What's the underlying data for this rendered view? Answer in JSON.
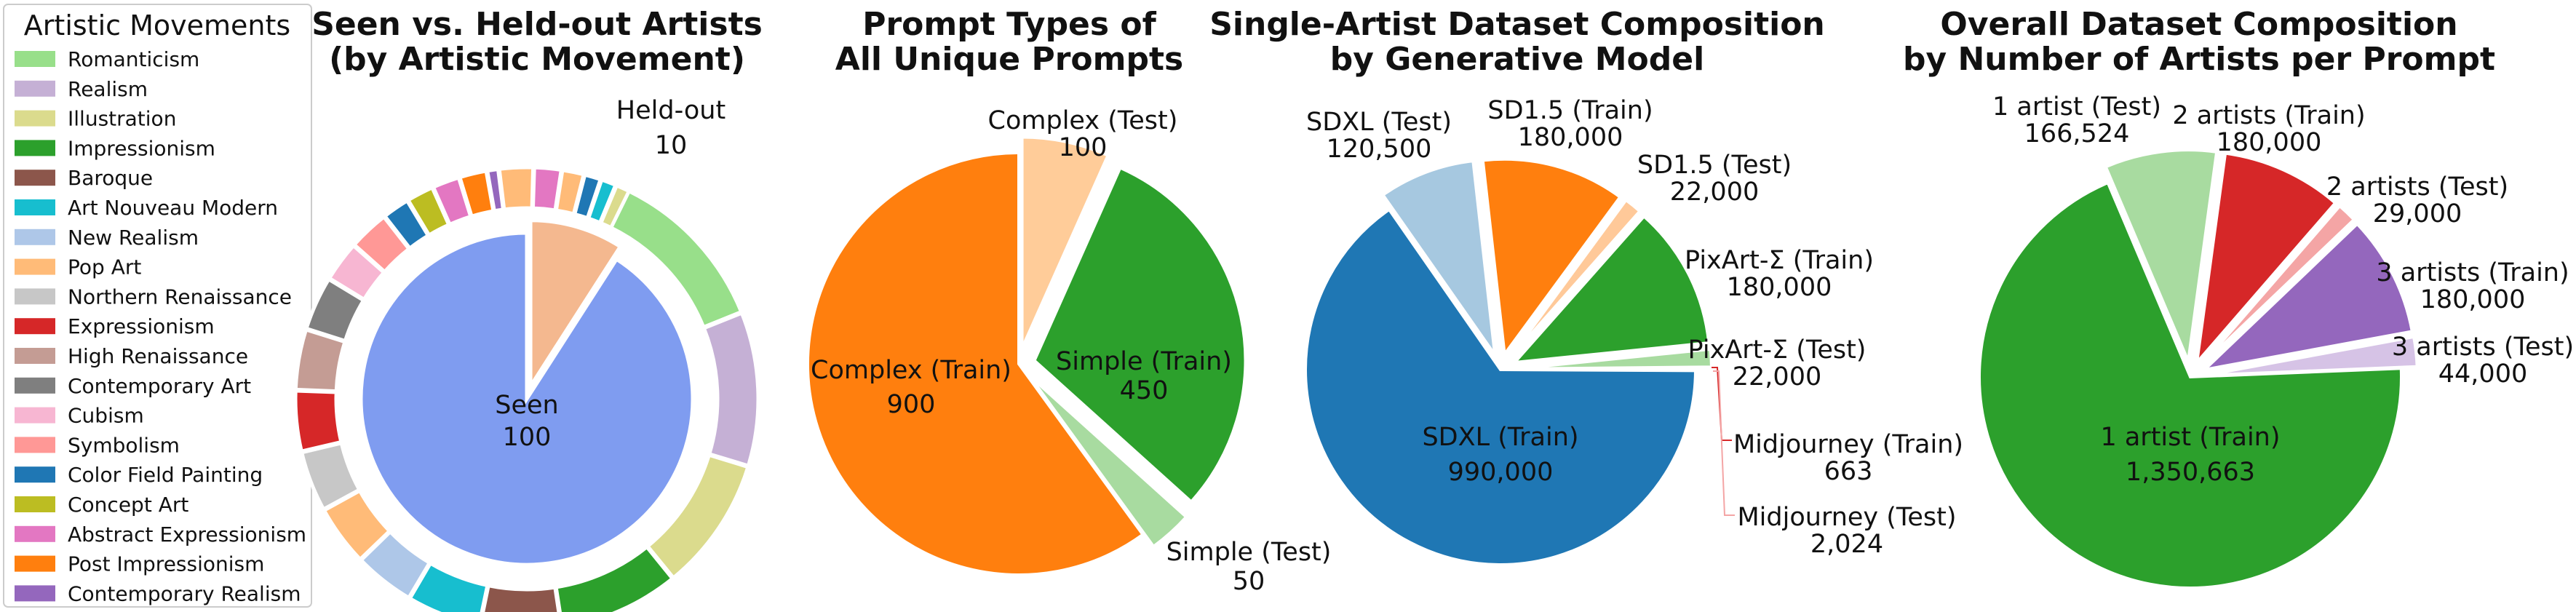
{
  "legend": {
    "title": "Artistic Movements",
    "items": [
      {
        "label": "Romanticism",
        "color": "#98df8a"
      },
      {
        "label": "Realism",
        "color": "#c5b0d5"
      },
      {
        "label": "Illustration",
        "color": "#dbdb8d"
      },
      {
        "label": "Impressionism",
        "color": "#2ca02c"
      },
      {
        "label": "Baroque",
        "color": "#8c564b"
      },
      {
        "label": "Art Nouveau Modern",
        "color": "#17becf"
      },
      {
        "label": "New Realism",
        "color": "#aec7e8"
      },
      {
        "label": "Pop Art",
        "color": "#ffbb78"
      },
      {
        "label": "Northern Renaissance",
        "color": "#c7c7c7"
      },
      {
        "label": "Expressionism",
        "color": "#d62728"
      },
      {
        "label": "High Renaissance",
        "color": "#c49c94"
      },
      {
        "label": "Contemporary Art",
        "color": "#7f7f7f"
      },
      {
        "label": "Cubism",
        "color": "#f7b6d2"
      },
      {
        "label": "Symbolism",
        "color": "#ff9896"
      },
      {
        "label": "Color Field Painting",
        "color": "#1f77b4"
      },
      {
        "label": "Concept Art",
        "color": "#bcbd22"
      },
      {
        "label": "Abstract Expressionism",
        "color": "#e377c2"
      },
      {
        "label": "Post Impressionism",
        "color": "#ff7f0e"
      },
      {
        "label": "Contemporary Realism",
        "color": "#9467bd"
      }
    ]
  },
  "chart_data": [
    {
      "type": "pie",
      "title": [
        "Seen vs. Held-out Artists",
        "(by Artistic Movement)"
      ],
      "slices": [
        {
          "label": "Seen",
          "value": 100,
          "color": "#7f9cf0"
        },
        {
          "label": "Held-out",
          "value": 10,
          "color": "#f4b88f"
        }
      ],
      "outer_ring": {
        "colors": [
          "#98df8a",
          "#c5b0d5",
          "#dbdb8d",
          "#2ca02c",
          "#8c564b",
          "#17becf",
          "#aec7e8",
          "#ffbb78",
          "#c7c7c7",
          "#d62728",
          "#c49c94",
          "#7f7f7f",
          "#f7b6d2",
          "#ff9896",
          "#1f77b4",
          "#bcbd22",
          "#e377c2",
          "#ff7f0e",
          "#9467bd",
          "#ffbb78",
          "#e377c2",
          "#ffbb78",
          "#1f77b4",
          "#17becf",
          "#dbdb8d"
        ],
        "values": [
          12.5,
          11.5,
          10,
          9,
          6,
          5.5,
          4.5,
          4.5,
          4.5,
          4.5,
          4.5,
          4,
          3,
          3,
          2,
          2,
          2,
          2,
          0.8,
          2.5,
          2,
          1.6,
          1.2,
          1.1,
          1.0
        ]
      }
    },
    {
      "type": "pie",
      "title": [
        "Prompt Types of",
        "All Unique Prompts"
      ],
      "slices": [
        {
          "label": "Complex (Train)",
          "value": 900,
          "color": "#ff7f0e"
        },
        {
          "label": "Complex (Test)",
          "value": 100,
          "color": "#ffcc99"
        },
        {
          "label": "Simple (Train)",
          "value": 450,
          "color": "#2ca02c"
        },
        {
          "label": "Simple (Test)",
          "value": 50,
          "color": "#a8dba0"
        }
      ]
    },
    {
      "type": "pie",
      "title": [
        "Single-Artist Dataset Composition",
        "by Generative Model"
      ],
      "slices": [
        {
          "label": "SDXL (Train)",
          "value": 990000,
          "value_label": "990,000",
          "color": "#1f77b4"
        },
        {
          "label": "SDXL (Test)",
          "value": 120500,
          "value_label": "120,500",
          "color": "#a6c8e0"
        },
        {
          "label": "SD1.5 (Train)",
          "value": 180000,
          "value_label": "180,000",
          "color": "#ff7f0e"
        },
        {
          "label": "SD1.5 (Test)",
          "value": 22000,
          "value_label": "22,000",
          "color": "#ffc999"
        },
        {
          "label": "PixArt-Σ (Train)",
          "value": 180000,
          "value_label": "180,000",
          "color": "#2ca02c"
        },
        {
          "label": "PixArt-Σ (Test)",
          "value": 22000,
          "value_label": "22,000",
          "color": "#a8dba0"
        },
        {
          "label": "Midjourney (Train)",
          "value": 663,
          "value_label": "663",
          "color": "#d62728"
        },
        {
          "label": "Midjourney (Test)",
          "value": 2024,
          "value_label": "2,024",
          "color": "#f4a5a5"
        }
      ]
    },
    {
      "type": "pie",
      "title": [
        "Overall Dataset Composition",
        "by Number of Artists per Prompt"
      ],
      "slices": [
        {
          "label": "1 artist (Train)",
          "value": 1350663,
          "value_label": "1,350,663",
          "color": "#2ca02c"
        },
        {
          "label": "1 artist (Test)",
          "value": 166524,
          "value_label": "166,524",
          "color": "#a8dba0"
        },
        {
          "label": "2 artists (Train)",
          "value": 180000,
          "value_label": "180,000",
          "color": "#d62728"
        },
        {
          "label": "2 artists (Test)",
          "value": 29000,
          "value_label": "29,000",
          "color": "#f4a5a5"
        },
        {
          "label": "3 artists (Train)",
          "value": 180000,
          "value_label": "180,000",
          "color": "#9467bd"
        },
        {
          "label": "3 artists (Test)",
          "value": 44000,
          "value_label": "44,000",
          "color": "#d6c3e6"
        }
      ]
    }
  ]
}
